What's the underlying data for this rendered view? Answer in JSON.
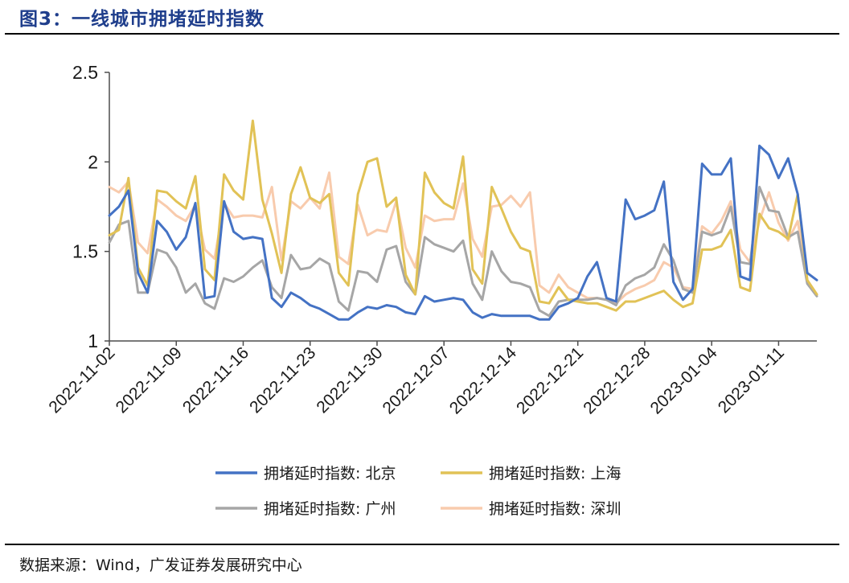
{
  "title": "图3：一线城市拥堵延时指数",
  "source": "数据来源：Wind，广发证券发展研究中心",
  "chart_data": {
    "type": "line",
    "title": "",
    "xlabel": "",
    "ylabel": "",
    "ylim": [
      1,
      2.5
    ],
    "yticks": [
      "1",
      "1.5",
      "2",
      "2.5"
    ],
    "xticks": [
      "2022-11-02",
      "2022-11-09",
      "2022-11-16",
      "2022-11-23",
      "2022-11-30",
      "2022-12-07",
      "2022-12-14",
      "2022-12-21",
      "2022-12-28",
      "2023-01-04",
      "2023-01-11"
    ],
    "x_start": "2022-11-02",
    "grid": false,
    "legend_position": "bottom",
    "series": [
      {
        "name": "拥堵延时指数: 北京",
        "color": "#4472c4",
        "values": [
          1.7,
          1.75,
          1.84,
          1.38,
          1.27,
          1.67,
          1.61,
          1.51,
          1.58,
          1.77,
          1.24,
          1.25,
          1.78,
          1.61,
          1.57,
          1.58,
          1.57,
          1.24,
          1.19,
          1.27,
          1.24,
          1.2,
          1.18,
          1.15,
          1.12,
          1.12,
          1.16,
          1.19,
          1.18,
          1.2,
          1.19,
          1.16,
          1.15,
          1.25,
          1.22,
          1.23,
          1.24,
          1.23,
          1.16,
          1.13,
          1.15,
          1.14,
          1.14,
          1.14,
          1.14,
          1.12,
          1.12,
          1.19,
          1.21,
          1.24,
          1.36,
          1.44,
          1.24,
          1.22,
          1.79,
          1.68,
          1.7,
          1.73,
          1.89,
          1.33,
          1.23,
          1.29,
          1.99,
          1.93,
          1.93,
          2.02,
          1.36,
          1.34,
          2.09,
          2.04,
          1.91,
          2.02,
          1.82,
          1.38,
          1.34
        ]
      },
      {
        "name": "拥堵延时指数: 上海",
        "color": "#e1c256",
        "values": [
          1.59,
          1.62,
          1.91,
          1.41,
          1.31,
          1.84,
          1.83,
          1.78,
          1.74,
          1.92,
          1.4,
          1.34,
          1.93,
          1.84,
          1.79,
          2.23,
          1.79,
          1.6,
          1.38,
          1.82,
          1.97,
          1.8,
          1.77,
          1.82,
          1.38,
          1.31,
          1.82,
          2.0,
          2.02,
          1.75,
          1.8,
          1.37,
          1.26,
          1.94,
          1.83,
          1.77,
          1.74,
          2.03,
          1.4,
          1.32,
          1.86,
          1.74,
          1.61,
          1.52,
          1.5,
          1.22,
          1.21,
          1.3,
          1.23,
          1.22,
          1.21,
          1.21,
          1.19,
          1.17,
          1.22,
          1.22,
          1.24,
          1.26,
          1.28,
          1.23,
          1.19,
          1.21,
          1.51,
          1.51,
          1.53,
          1.62,
          1.3,
          1.28,
          1.71,
          1.63,
          1.61,
          1.57,
          1.82,
          1.34,
          1.26
        ]
      },
      {
        "name": "拥堵延时指数: 广州",
        "color": "#a6a6a6",
        "values": [
          1.55,
          1.65,
          1.67,
          1.27,
          1.27,
          1.51,
          1.49,
          1.41,
          1.27,
          1.32,
          1.21,
          1.18,
          1.35,
          1.33,
          1.36,
          1.41,
          1.45,
          1.3,
          1.24,
          1.48,
          1.4,
          1.41,
          1.46,
          1.43,
          1.22,
          1.17,
          1.39,
          1.38,
          1.33,
          1.51,
          1.53,
          1.33,
          1.26,
          1.58,
          1.54,
          1.52,
          1.5,
          1.56,
          1.32,
          1.23,
          1.5,
          1.39,
          1.33,
          1.32,
          1.3,
          1.17,
          1.14,
          1.22,
          1.23,
          1.23,
          1.23,
          1.24,
          1.23,
          1.2,
          1.31,
          1.35,
          1.37,
          1.41,
          1.54,
          1.45,
          1.29,
          1.27,
          1.61,
          1.59,
          1.61,
          1.75,
          1.44,
          1.43,
          1.86,
          1.73,
          1.72,
          1.58,
          1.61,
          1.32,
          1.25
        ]
      },
      {
        "name": "拥堵延时指数: 深圳",
        "color": "#f8cbad",
        "values": [
          1.86,
          1.83,
          1.89,
          1.55,
          1.49,
          1.79,
          1.75,
          1.7,
          1.67,
          1.76,
          1.51,
          1.46,
          1.77,
          1.69,
          1.7,
          1.7,
          1.69,
          1.86,
          1.45,
          1.78,
          1.74,
          1.8,
          1.74,
          1.94,
          1.47,
          1.43,
          1.76,
          1.59,
          1.62,
          1.61,
          1.78,
          1.52,
          1.41,
          1.7,
          1.67,
          1.68,
          1.68,
          1.88,
          1.57,
          1.47,
          1.75,
          1.76,
          1.81,
          1.75,
          1.83,
          1.31,
          1.27,
          1.37,
          1.3,
          1.27,
          1.24,
          1.24,
          1.23,
          1.21,
          1.26,
          1.29,
          1.31,
          1.34,
          1.44,
          1.41,
          1.3,
          1.29,
          1.64,
          1.6,
          1.67,
          1.78,
          1.51,
          1.44,
          1.67,
          1.83,
          1.66,
          1.56,
          1.67,
          1.34,
          1.26
        ]
      }
    ]
  }
}
